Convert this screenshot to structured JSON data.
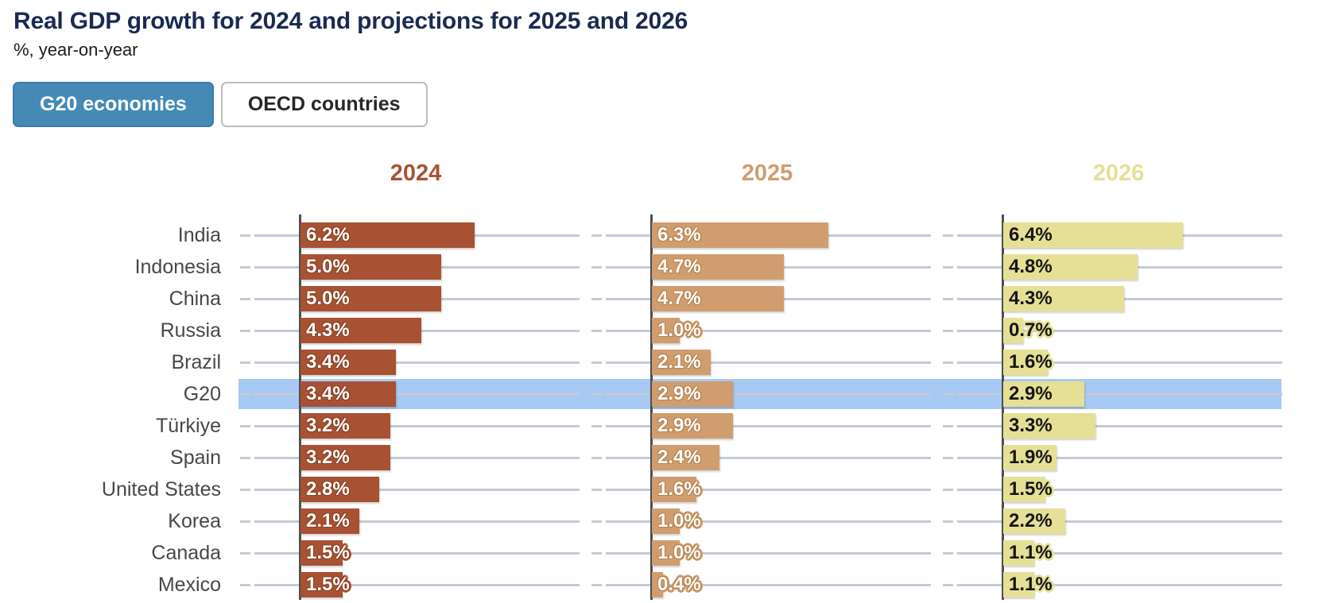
{
  "header": {
    "title": "Real GDP growth for 2024 and projections for 2025 and 2026",
    "subtitle": "%, year-on-year"
  },
  "toggle": {
    "options": [
      {
        "label": "G20 economies",
        "active": true
      },
      {
        "label": "OECD countries",
        "active": false
      }
    ]
  },
  "chart_data": {
    "type": "bar",
    "orientation": "horizontal",
    "value_suffix": "%",
    "xlim": [
      0,
      10
    ],
    "grid": true,
    "highlight_category": "G20",
    "highlight_band_color": "#a7c9f4",
    "categories": [
      "India",
      "Indonesia",
      "China",
      "Russia",
      "Brazil",
      "G20",
      "Türkiye",
      "Spain",
      "United States",
      "Korea",
      "Canada",
      "Mexico"
    ],
    "series": [
      {
        "name": "2024",
        "color": "#a85233",
        "outline_color": "#8c4227",
        "label_color": "#ffffff",
        "values": [
          6.2,
          5.0,
          5.0,
          4.3,
          3.4,
          3.4,
          3.2,
          3.2,
          2.8,
          2.1,
          1.5,
          1.5
        ]
      },
      {
        "name": "2025",
        "color": "#d09d6f",
        "outline_color": "#b5834f",
        "label_color": "#ffffff",
        "values": [
          6.3,
          4.7,
          4.7,
          1.0,
          2.1,
          2.9,
          2.9,
          2.4,
          1.6,
          1.0,
          1.0,
          0.4
        ]
      },
      {
        "name": "2026",
        "color": "#e5e096",
        "outline_color": "#e5e096",
        "label_color": "#161616",
        "values": [
          6.4,
          4.8,
          4.3,
          0.7,
          1.6,
          2.9,
          3.3,
          1.9,
          1.5,
          2.2,
          1.1,
          1.1
        ]
      }
    ],
    "colors": {
      "gridline": "#c3cbd6",
      "axis": "#4f4f4f",
      "country_label": "#474747",
      "title": "#1b2a52",
      "active_button": "#4589b6"
    }
  }
}
